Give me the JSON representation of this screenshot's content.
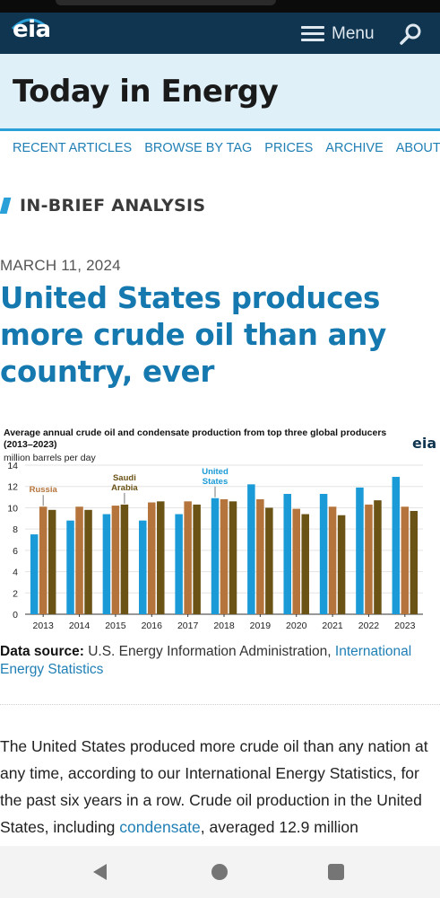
{
  "header": {
    "logo": "eia",
    "menu_label": "Menu"
  },
  "banner": {
    "title": "Today in Energy"
  },
  "subnav": [
    "RECENT ARTICLES",
    "BROWSE BY TAG",
    "PRICES",
    "ARCHIVE",
    "ABOUT"
  ],
  "article": {
    "section_tag": "IN-BRIEF ANALYSIS",
    "date": "MARCH 11, 2024",
    "headline": "United States produces more crude oil than any country, ever",
    "source_label": "Data source:",
    "source_text": "U.S. Energy Information Administration,",
    "source_link": "International Energy Statistics",
    "body_part1": "The United States produced more crude oil than any nation at any time, according to our International Energy Statistics, for the past six years in a row. Crude oil production in the United States, including ",
    "body_link": "condensate",
    "body_part2": ", averaged 12.9 million"
  },
  "chart_data": {
    "type": "bar",
    "title": "Average annual crude oil and condensate production from top three global producers (2013–2023)",
    "ylabel": "million barrels per day",
    "logo": "eia",
    "ylim": [
      0,
      14
    ],
    "yticks": [
      "0",
      "2",
      "4",
      "6",
      "8",
      "10",
      "12",
      "14"
    ],
    "categories": [
      "2013",
      "2014",
      "2015",
      "2016",
      "2017",
      "2018",
      "2019",
      "2020",
      "2021",
      "2022",
      "2023"
    ],
    "series": [
      {
        "name": "United States",
        "color": "#1a9ad6",
        "values": [
          7.5,
          8.8,
          9.4,
          8.8,
          9.4,
          10.9,
          12.2,
          11.3,
          11.3,
          11.9,
          12.9
        ]
      },
      {
        "name": "Russia",
        "color": "#b5743b",
        "values": [
          10.1,
          10.1,
          10.2,
          10.5,
          10.6,
          10.8,
          10.8,
          9.9,
          10.1,
          10.3,
          10.1
        ]
      },
      {
        "name": "Saudi Arabia",
        "color": "#6b5316",
        "values": [
          9.8,
          9.8,
          10.3,
          10.6,
          10.3,
          10.6,
          10.0,
          9.4,
          9.3,
          10.7,
          9.7
        ]
      }
    ],
    "annotations": [
      {
        "text": "Russia",
        "series": "Russia",
        "category": "2013"
      },
      {
        "text": "Saudi Arabia",
        "series": "Saudi Arabia",
        "category": "2015"
      },
      {
        "text": "United States",
        "series": "United States",
        "category": "2018"
      }
    ]
  }
}
